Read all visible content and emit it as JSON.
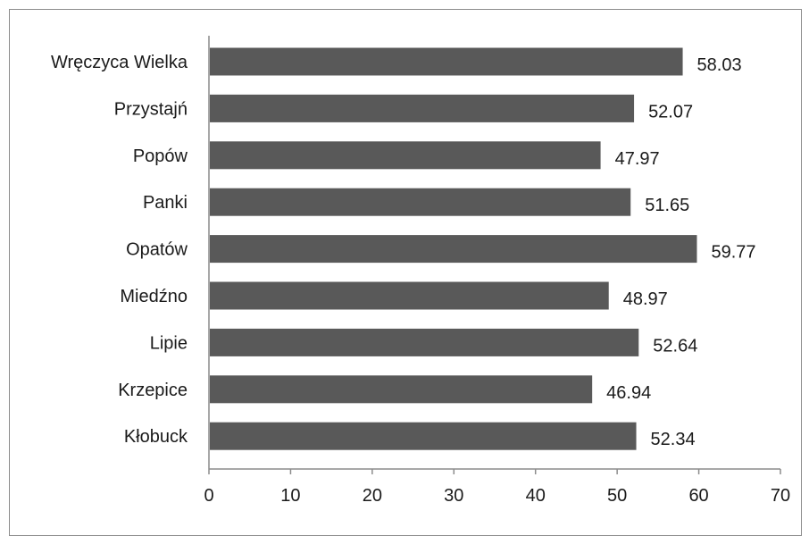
{
  "chart_data": {
    "type": "bar",
    "orientation": "horizontal",
    "categories": [
      "Wręczyca Wielka",
      "Przystajń",
      "Popów",
      "Panki",
      "Opatów",
      "Miedźno",
      "Lipie",
      "Krzepice",
      "Kłobuck"
    ],
    "values": [
      58.03,
      52.07,
      47.97,
      51.65,
      59.77,
      48.97,
      52.64,
      46.94,
      52.34
    ],
    "data_labels": [
      "58.03",
      "52.07",
      "47.97",
      "51.65",
      "59.77",
      "48.97",
      "52.64",
      "46.94",
      "52.34"
    ],
    "title": "",
    "xlabel": "",
    "ylabel": "",
    "xlim": [
      0,
      70
    ],
    "x_ticks": [
      "0",
      "10",
      "20",
      "30",
      "40",
      "50",
      "60",
      "70"
    ],
    "grid": false,
    "legend": "none",
    "bar_color": "#595959",
    "axis_color": "#8c8c8c"
  }
}
